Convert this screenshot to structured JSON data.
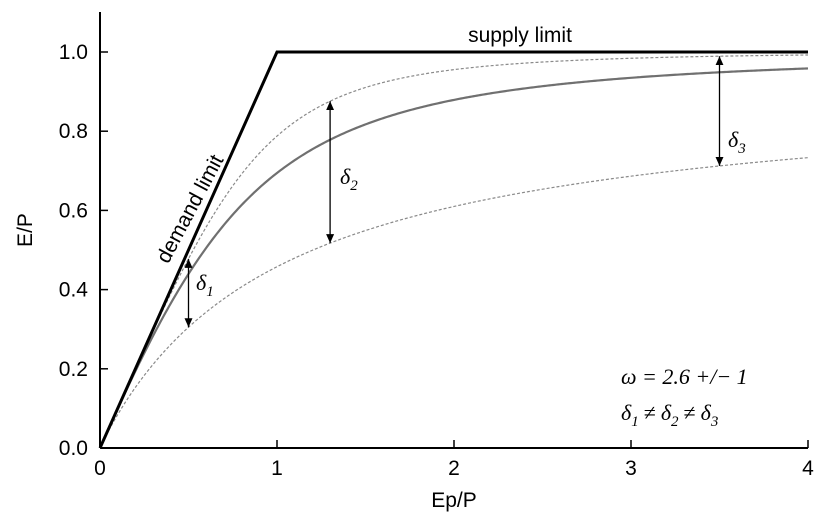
{
  "chart_data": {
    "type": "line",
    "title": "",
    "xlabel": "Ep/P",
    "ylabel": "E/P",
    "xlim": [
      0,
      4
    ],
    "ylim": [
      0,
      1.0
    ],
    "xticks": [
      "0",
      "1",
      "2",
      "3",
      "4"
    ],
    "yticks": [
      "0.0",
      "0.2",
      "0.4",
      "0.6",
      "0.8",
      "1.0"
    ],
    "grid": false,
    "legend": "none",
    "series": [
      {
        "style": "black-bold",
        "x": [
          0,
          1,
          4
        ],
        "y": [
          0,
          1,
          1
        ]
      },
      {
        "style": "gray-solid",
        "fu_omega": 2.6,
        "x_range": [
          0,
          4
        ]
      },
      {
        "style": "gray-dashed-upper",
        "fu_omega": 3.6,
        "x_range": [
          0,
          4
        ]
      },
      {
        "style": "gray-dashed-lower",
        "fu_omega": 1.6,
        "x_range": [
          0,
          4
        ]
      }
    ],
    "annotations": {
      "demand_limit": "demand limit",
      "supply_limit": "supply limit",
      "delta1_sym": "δ",
      "delta1_sub": "1",
      "delta2_sym": "δ",
      "delta2_sub": "2",
      "delta3_sym": "δ",
      "delta3_sub": "3",
      "delta_arrows_x": [
        0.5,
        1.3,
        3.5
      ],
      "omega_text": "ω = 2.6 +/− 1",
      "ineq_d": "δ",
      "ineq_neq": "≠",
      "ineq_sub1": "1",
      "ineq_sub2": "2",
      "ineq_sub3": "3"
    },
    "colors": {
      "limits": "#000000",
      "curves": "#808080"
    }
  }
}
